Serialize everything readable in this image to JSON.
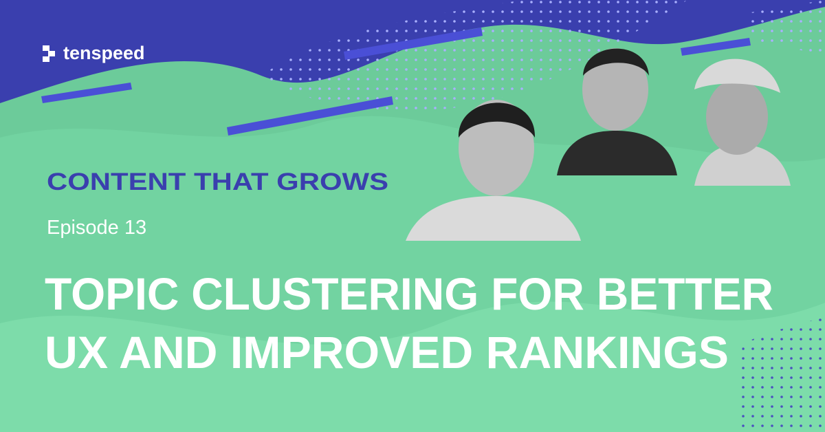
{
  "brand": {
    "name": "tenspeed"
  },
  "series": {
    "title": "CONTENT THAT GROWS"
  },
  "episode": {
    "label": "Episode 13"
  },
  "headline": {
    "lines": [
      "TOPIC CLUSTERING FOR BETTER",
      "UX AND IMPROVED RANKINGS"
    ]
  }
}
